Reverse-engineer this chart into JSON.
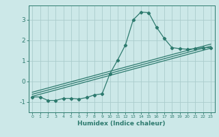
{
  "xlabel": "Humidex (Indice chaleur)",
  "bg_color": "#cce8e8",
  "grid_color": "#aacccc",
  "line_color": "#2d7a6e",
  "xlim": [
    -0.5,
    23.5
  ],
  "ylim": [
    -1.5,
    3.7
  ],
  "yticks": [
    -1,
    0,
    1,
    2,
    3
  ],
  "xticks": [
    0,
    1,
    2,
    3,
    4,
    5,
    6,
    7,
    8,
    9,
    10,
    11,
    12,
    13,
    14,
    15,
    16,
    17,
    18,
    19,
    20,
    21,
    22,
    23
  ],
  "curve_x": [
    0,
    1,
    2,
    3,
    4,
    5,
    6,
    7,
    8,
    9,
    10,
    11,
    12,
    13,
    14,
    15,
    16,
    17,
    18,
    19,
    20,
    21,
    22,
    23
  ],
  "curve_y": [
    -0.75,
    -0.75,
    -0.92,
    -0.92,
    -0.82,
    -0.82,
    -0.85,
    -0.78,
    -0.65,
    -0.6,
    0.38,
    1.05,
    1.78,
    3.0,
    3.38,
    3.35,
    2.65,
    2.1,
    1.65,
    1.6,
    1.57,
    1.6,
    1.65,
    1.65
  ],
  "line1_x": [
    0,
    23
  ],
  "line1_y": [
    -0.62,
    1.72
  ],
  "line2_x": [
    0,
    23
  ],
  "line2_y": [
    -0.52,
    1.82
  ],
  "line3_x": [
    0,
    23
  ],
  "line3_y": [
    -0.72,
    1.62
  ]
}
